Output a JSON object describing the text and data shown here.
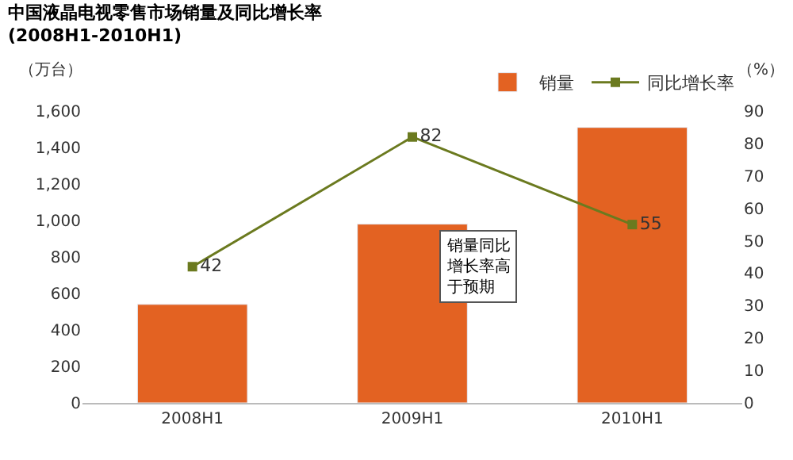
{
  "chart_data": {
    "type": "bar",
    "title": "中国液晶电视零售市场销量及同比增长率",
    "subtitle": "(2008H1-2010H1)",
    "ylabel": "（万台）",
    "y2label": "（%）",
    "categories": [
      "2008H1",
      "2009H1",
      "2010H1"
    ],
    "series": [
      {
        "name": "销量",
        "color": "#e36222",
        "values": [
          540,
          980,
          1510
        ]
      },
      {
        "name": "同比增长率",
        "type": "line",
        "axis": "y2",
        "color": "#6b7a1f",
        "marker": "square",
        "values": [
          42,
          82,
          55
        ],
        "value_labels": [
          "42",
          "82",
          "55"
        ]
      }
    ],
    "ylim": [
      0,
      1600
    ],
    "yticks": [
      0,
      {
        "value": 200,
        "label": "200"
      },
      400,
      600,
      800,
      {
        "value": 1000,
        "label": "1,000"
      },
      {
        "value": 1200,
        "label": "1,200"
      },
      {
        "value": 1400,
        "label": "1,400"
      },
      {
        "value": 1600,
        "label": "1,600"
      }
    ],
    "y2lim": [
      0,
      90
    ],
    "y2ticks": [
      0,
      10,
      20,
      30,
      40,
      50,
      60,
      70,
      80,
      90
    ],
    "legend": "top right",
    "grid": false,
    "annotations": [
      "销量同比增长率高于预期"
    ]
  }
}
